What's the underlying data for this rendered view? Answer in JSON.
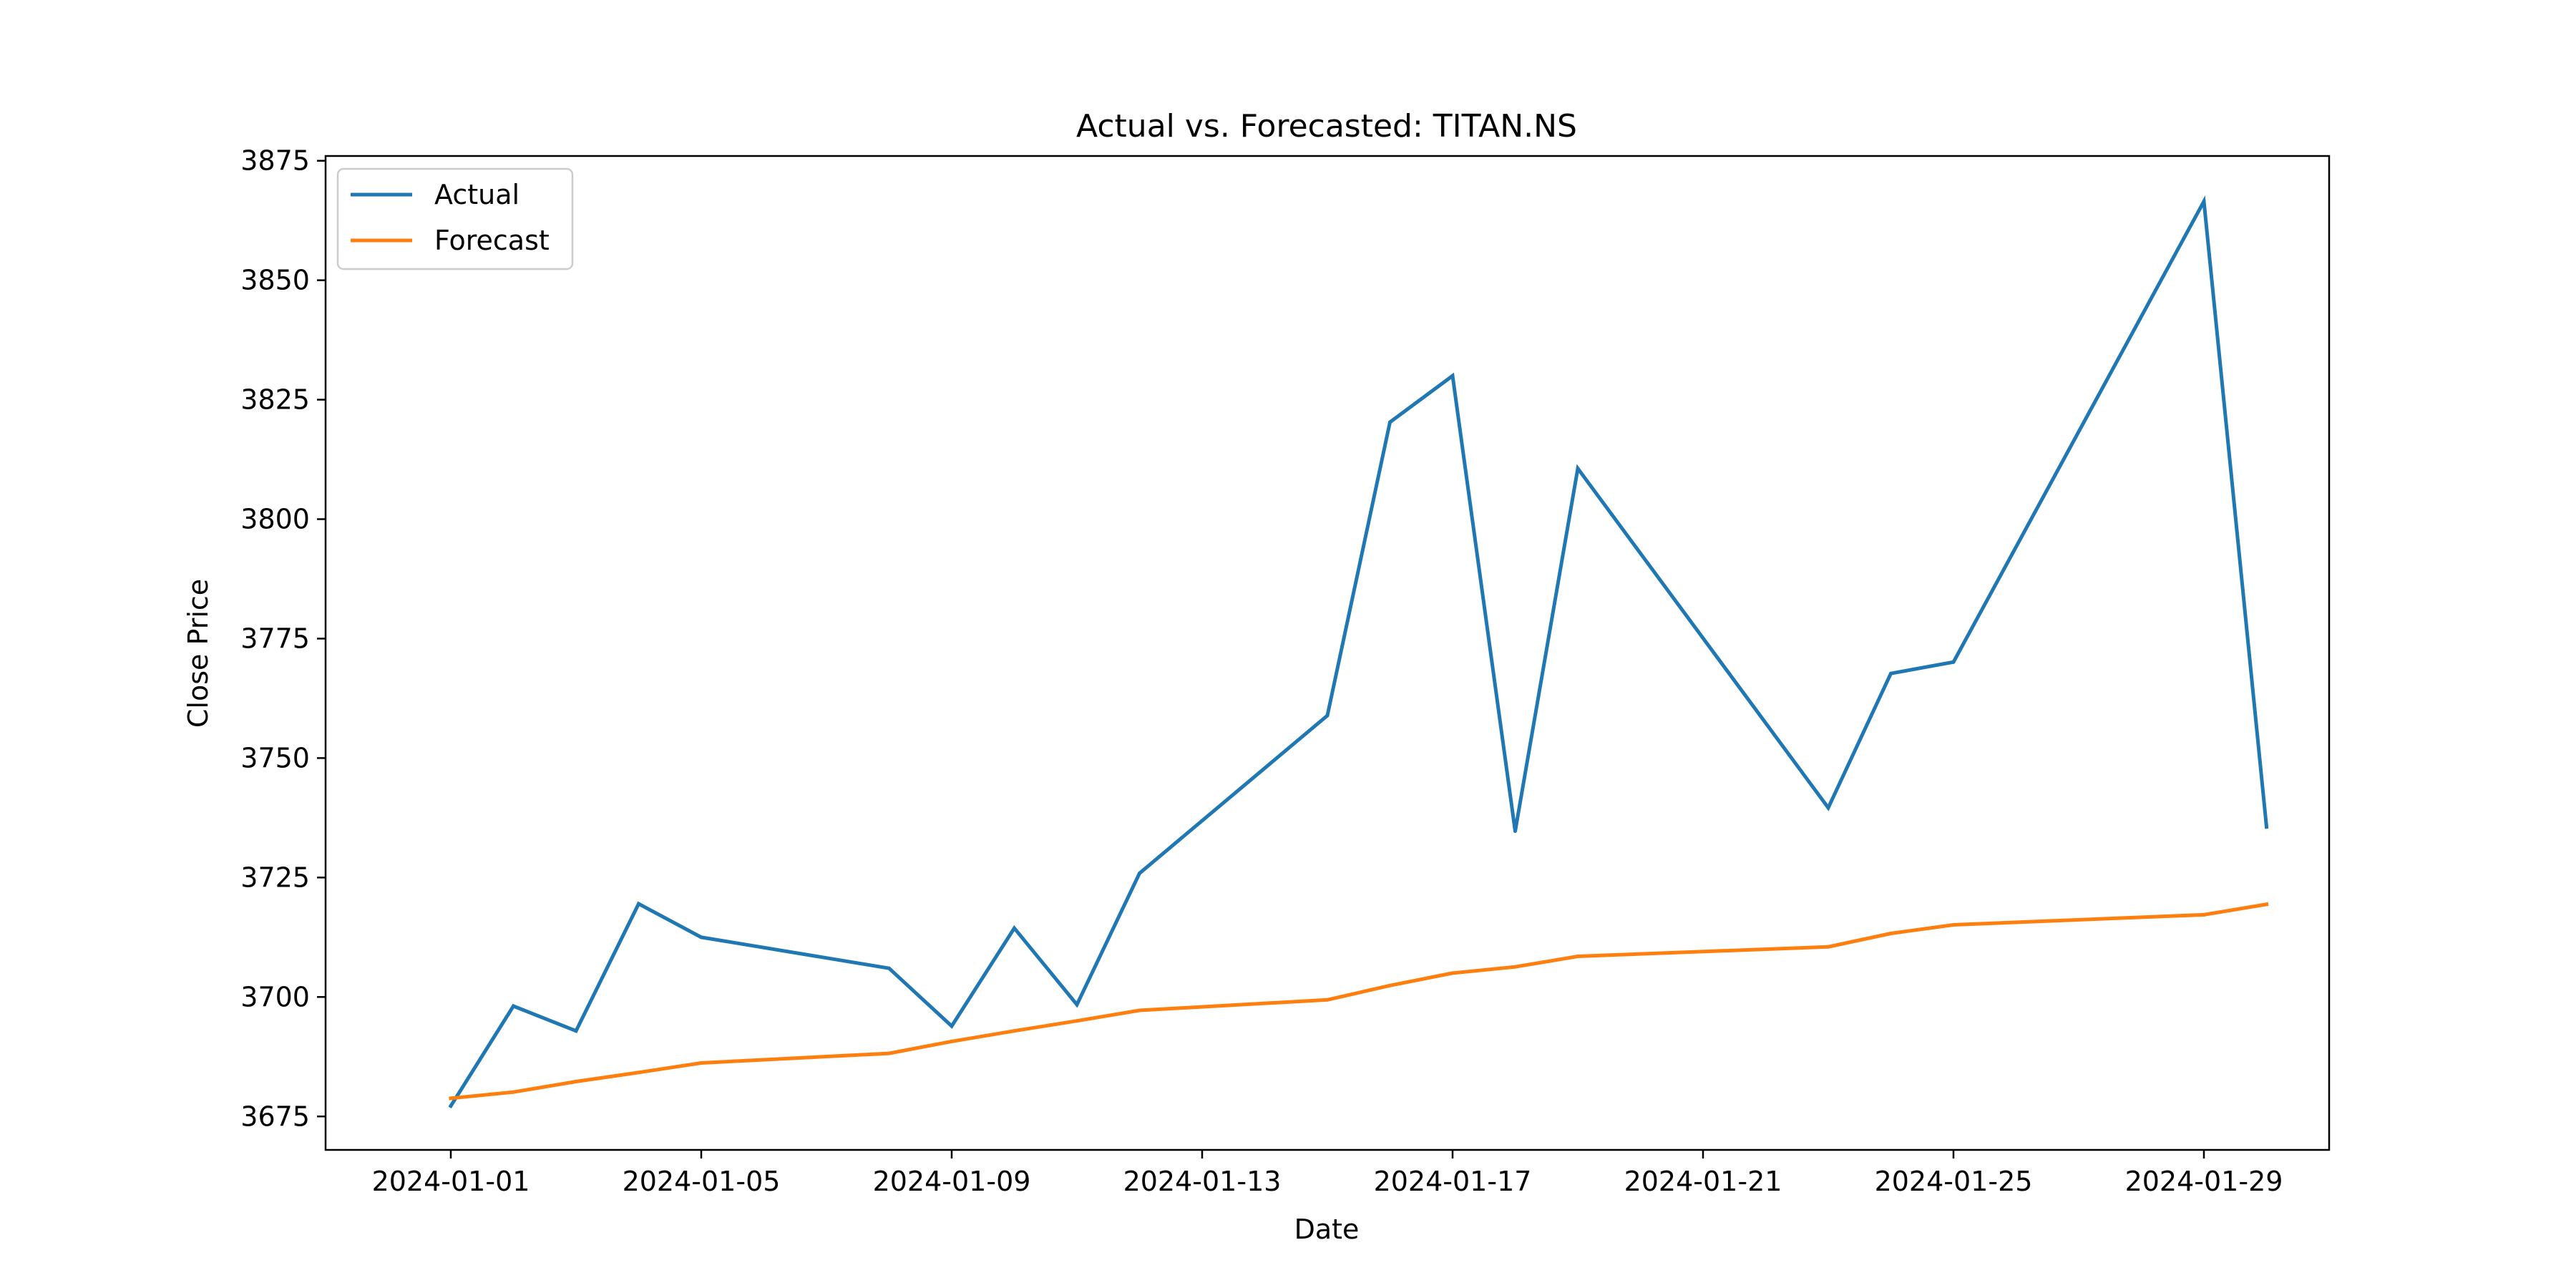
{
  "chart_data": {
    "type": "line",
    "title": "Actual vs. Forecasted: TITAN.NS",
    "xlabel": "Date",
    "ylabel": "Close Price",
    "x": [
      "2024-01-01",
      "2024-01-02",
      "2024-01-03",
      "2024-01-04",
      "2024-01-05",
      "2024-01-08",
      "2024-01-09",
      "2024-01-10",
      "2024-01-11",
      "2024-01-12",
      "2024-01-15",
      "2024-01-16",
      "2024-01-17",
      "2024-01-18",
      "2024-01-19",
      "2024-01-23",
      "2024-01-24",
      "2024-01-25",
      "2024-01-29",
      "2024-01-30"
    ],
    "series": [
      {
        "name": "Actual",
        "color": "#1f77b4",
        "values": [
          3677.2,
          3698.1,
          3692.9,
          3719.5,
          3712.5,
          3706.0,
          3693.9,
          3714.4,
          3698.4,
          3725.9,
          3758.9,
          3820.3,
          3830.0,
          3734.7,
          3810.6,
          3739.6,
          3767.7,
          3770.1,
          3866.5,
          3735.6
        ]
      },
      {
        "name": "Forecast",
        "color": "#ff7f0e",
        "values": [
          3678.8,
          3680.1,
          3682.3,
          3684.2,
          3686.2,
          3688.2,
          3690.7,
          3692.9,
          3695.0,
          3697.2,
          3699.4,
          3702.4,
          3705.0,
          3706.3,
          3708.5,
          3710.5,
          3713.3,
          3715.1,
          3717.2,
          3719.4
        ]
      }
    ],
    "xlim": [
      "2023-12-30",
      "2024-01-31"
    ],
    "ylim": [
      3668,
      3876
    ],
    "x_ticks": [
      "2024-01-01",
      "2024-01-05",
      "2024-01-09",
      "2024-01-13",
      "2024-01-17",
      "2024-01-21",
      "2024-01-25",
      "2024-01-29"
    ],
    "y_ticks": [
      3675,
      3700,
      3725,
      3750,
      3775,
      3800,
      3825,
      3850,
      3875
    ],
    "legend": {
      "placement": "top-left",
      "entries": [
        "Actual",
        "Forecast"
      ]
    },
    "grid": false
  }
}
